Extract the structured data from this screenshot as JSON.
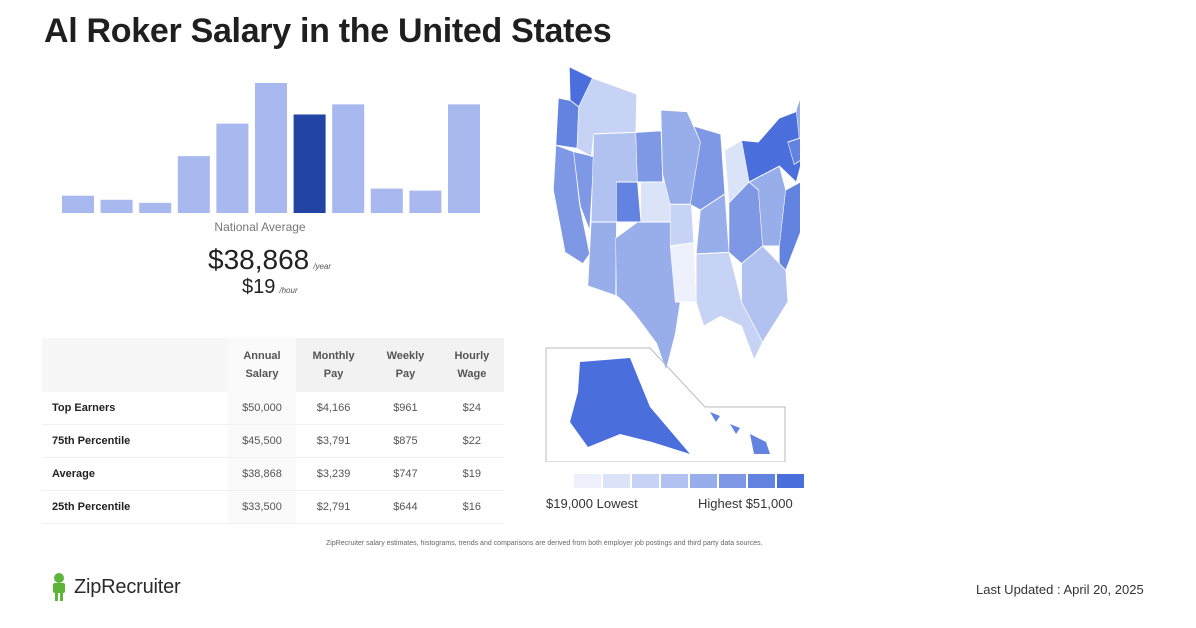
{
  "title": "Al Roker Salary in the United States",
  "national": {
    "label": "National Average",
    "salary": "$38,868",
    "salary_unit": "/year",
    "hourly": "$19",
    "hourly_unit": "/hour"
  },
  "chart_data": {
    "type": "bar",
    "values": [
      17,
      13,
      10,
      56,
      88,
      128,
      97,
      107,
      24,
      22,
      107
    ],
    "highlight_index": 6,
    "colors": {
      "bar": "#a7b9ee",
      "highlight": "#2244a3"
    }
  },
  "table": {
    "headers": [
      "Annual\nSalary",
      "Monthly\nPay",
      "Weekly\nPay",
      "Hourly\nWage"
    ],
    "rows": [
      [
        "Top Earners",
        "$50,000",
        "$4,166",
        "$961",
        "$24"
      ],
      [
        "75th Percentile",
        "$45,500",
        "$3,791",
        "$875",
        "$22"
      ],
      [
        "Average",
        "$38,868",
        "$3,239",
        "$747",
        "$19"
      ],
      [
        "25th Percentile",
        "$33,500",
        "$2,791",
        "$644",
        "$16"
      ]
    ]
  },
  "legend": {
    "low": "$19,000 Lowest",
    "high": "Highest $51,000",
    "colors": [
      "#eef1fb",
      "#dbe3f8",
      "#c7d3f4",
      "#b1c2f0",
      "#98aeeb",
      "#7e98e6",
      "#6383e0",
      "#4a6edb"
    ]
  },
  "footnote": "ZipRecruiter salary estimates, histograms, trends and comparisons are derived from both employer job postings and third party data sources.",
  "brand": "ZipRecruiter",
  "updated": "Last Updated : April 20, 2025"
}
